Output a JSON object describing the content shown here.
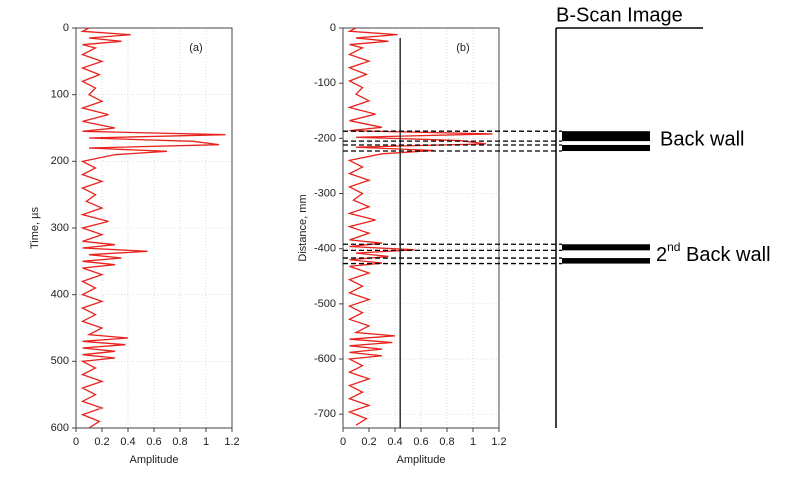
{
  "chart_data": [
    {
      "type": "line",
      "panel_label": "(a)",
      "y_label": "Time, µs",
      "x_label": "Amplitude",
      "xlim": [
        0,
        1.2
      ],
      "xticks": [
        0,
        0.2,
        0.4,
        0.6,
        0.8,
        1,
        1.2
      ],
      "ylim": [
        0,
        600
      ],
      "yticks": [
        0,
        100,
        200,
        300,
        400,
        500,
        600
      ],
      "grid": true,
      "color": "#e8221c",
      "y": [
        0,
        5,
        10,
        15,
        20,
        25,
        30,
        40,
        50,
        60,
        70,
        80,
        90,
        100,
        110,
        120,
        130,
        140,
        150,
        155,
        160,
        165,
        170,
        175,
        180,
        185,
        190,
        200,
        210,
        220,
        230,
        240,
        250,
        260,
        270,
        280,
        290,
        300,
        310,
        320,
        325,
        330,
        335,
        340,
        345,
        350,
        355,
        360,
        370,
        380,
        390,
        400,
        410,
        420,
        430,
        440,
        450,
        460,
        465,
        470,
        475,
        480,
        485,
        490,
        495,
        500,
        510,
        520,
        530,
        540,
        550,
        560,
        570,
        580,
        590,
        600
      ],
      "values": [
        0.1,
        0.05,
        0.42,
        0.1,
        0.35,
        0.05,
        0.15,
        0.05,
        0.2,
        0.05,
        0.18,
        0.05,
        0.15,
        0.1,
        0.2,
        0.05,
        0.25,
        0.05,
        0.3,
        0.05,
        1.15,
        0.1,
        0.9,
        1.1,
        0.1,
        0.7,
        0.3,
        0.05,
        0.15,
        0.05,
        0.2,
        0.05,
        0.15,
        0.08,
        0.2,
        0.05,
        0.25,
        0.05,
        0.2,
        0.05,
        0.3,
        0.05,
        0.55,
        0.1,
        0.35,
        0.05,
        0.3,
        0.05,
        0.2,
        0.05,
        0.15,
        0.05,
        0.2,
        0.05,
        0.15,
        0.05,
        0.2,
        0.1,
        0.4,
        0.05,
        0.38,
        0.05,
        0.3,
        0.05,
        0.3,
        0.05,
        0.15,
        0.05,
        0.2,
        0.05,
        0.15,
        0.05,
        0.2,
        0.05,
        0.18,
        0.1
      ]
    },
    {
      "type": "line",
      "panel_label": "(b)",
      "y_label": "Distance, mm",
      "x_label": "Amplitude",
      "xlim": [
        0,
        1.2
      ],
      "xticks": [
        0,
        0.2,
        0.4,
        0.6,
        0.8,
        1,
        1.2
      ],
      "ylim": [
        -725,
        0
      ],
      "yticks": [
        0,
        -100,
        -200,
        -300,
        -400,
        -500,
        -600,
        -700
      ],
      "grid": true,
      "color": "#e8221c",
      "threshold": 0.44,
      "y": [
        0,
        -6,
        -12,
        -18,
        -24,
        -30,
        -36,
        -48,
        -60,
        -72,
        -84,
        -96,
        -108,
        -120,
        -132,
        -144,
        -156,
        -168,
        -180,
        -186,
        -192,
        -198,
        -204,
        -210,
        -216,
        -222,
        -228,
        -240,
        -252,
        -264,
        -276,
        -288,
        -300,
        -312,
        -324,
        -336,
        -348,
        -360,
        -372,
        -384,
        -390,
        -396,
        -402,
        -408,
        -414,
        -420,
        -426,
        -432,
        -444,
        -456,
        -468,
        -480,
        -492,
        -504,
        -516,
        -528,
        -540,
        -552,
        -558,
        -564,
        -570,
        -576,
        -582,
        -588,
        -594,
        -600,
        -612,
        -624,
        -636,
        -648,
        -660,
        -672,
        -684,
        -696,
        -708,
        -720
      ],
      "values": [
        0.1,
        0.05,
        0.42,
        0.1,
        0.35,
        0.05,
        0.15,
        0.05,
        0.2,
        0.05,
        0.18,
        0.05,
        0.15,
        0.1,
        0.2,
        0.05,
        0.25,
        0.05,
        0.3,
        0.05,
        1.15,
        0.1,
        0.9,
        1.1,
        0.1,
        0.7,
        0.3,
        0.05,
        0.15,
        0.05,
        0.2,
        0.05,
        0.15,
        0.08,
        0.2,
        0.05,
        0.25,
        0.05,
        0.2,
        0.05,
        0.3,
        0.05,
        0.55,
        0.1,
        0.35,
        0.05,
        0.3,
        0.05,
        0.2,
        0.05,
        0.15,
        0.05,
        0.2,
        0.05,
        0.15,
        0.05,
        0.2,
        0.1,
        0.4,
        0.05,
        0.38,
        0.05,
        0.3,
        0.05,
        0.3,
        0.05,
        0.15,
        0.05,
        0.2,
        0.05,
        0.15,
        0.05,
        0.2,
        0.05,
        0.18,
        0.1
      ],
      "echoes": [
        [
          -187,
          -205
        ],
        [
          -212,
          -223
        ],
        [
          -392,
          -403
        ],
        [
          -417,
          -427
        ]
      ]
    }
  ],
  "bscan": {
    "title": "B-Scan Image",
    "label_1": "Back wall",
    "label_2_num": "2",
    "label_2_sup": "nd",
    "label_2_rest": " Back wall"
  }
}
